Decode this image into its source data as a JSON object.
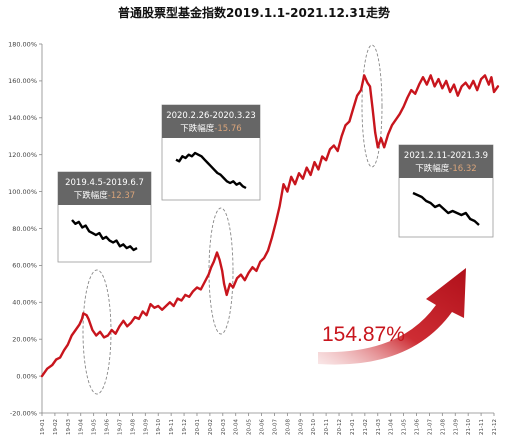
{
  "chart_data": {
    "type": "line",
    "title": "普通股票型基金指数2019.1.1-2021.12.31走势",
    "y_ticks": [
      "-20.00%",
      "0.00%",
      "20.00%",
      "40.00%",
      "60.00%",
      "80.00%",
      "100.00%",
      "120.00%",
      "140.00%",
      "160.00%",
      "180.00%"
    ],
    "ylim": [
      -20,
      180
    ],
    "x_ticks": [
      "19-01",
      "19-02",
      "19-03",
      "19-04",
      "19-05",
      "19-06",
      "19-07",
      "19-08",
      "19-09",
      "19-10",
      "19-11",
      "19-12",
      "20-01",
      "20-02",
      "20-03",
      "20-04",
      "20-05",
      "20-06",
      "20-07",
      "20-08",
      "20-09",
      "20-10",
      "20-11",
      "20-12",
      "21-01",
      "21-02",
      "21-03",
      "21-04",
      "21-05",
      "21-06",
      "21-07",
      "21-08",
      "21-09",
      "21-10",
      "21-11",
      "21-12"
    ],
    "series": [
      {
        "color": "#c8151d",
        "points": [
          [
            0,
            0
          ],
          [
            0.4,
            4
          ],
          [
            0.8,
            6
          ],
          [
            1.1,
            9
          ],
          [
            1.4,
            10
          ],
          [
            1.7,
            14
          ],
          [
            2.0,
            17
          ],
          [
            2.3,
            22
          ],
          [
            2.6,
            25
          ],
          [
            2.9,
            28
          ],
          [
            3.1,
            31
          ],
          [
            3.2,
            34
          ],
          [
            3.45,
            33
          ],
          [
            3.6,
            31
          ],
          [
            3.9,
            25
          ],
          [
            4.2,
            22
          ],
          [
            4.5,
            24
          ],
          [
            4.8,
            21
          ],
          [
            5.1,
            22
          ],
          [
            5.4,
            25
          ],
          [
            5.7,
            23
          ],
          [
            6.0,
            27
          ],
          [
            6.3,
            30
          ],
          [
            6.6,
            27
          ],
          [
            6.9,
            29
          ],
          [
            7.2,
            32
          ],
          [
            7.5,
            31
          ],
          [
            7.8,
            35
          ],
          [
            8.1,
            33
          ],
          [
            8.4,
            39
          ],
          [
            8.7,
            37
          ],
          [
            9.0,
            38
          ],
          [
            9.3,
            36
          ],
          [
            9.6,
            38
          ],
          [
            9.9,
            40
          ],
          [
            10.2,
            38
          ],
          [
            10.5,
            42
          ],
          [
            10.8,
            41
          ],
          [
            11.1,
            44
          ],
          [
            11.4,
            43
          ],
          [
            11.7,
            46
          ],
          [
            12.0,
            48
          ],
          [
            12.3,
            47
          ],
          [
            12.6,
            51
          ],
          [
            12.9,
            55
          ],
          [
            13.1,
            59
          ],
          [
            13.3,
            62
          ],
          [
            13.55,
            67
          ],
          [
            13.75,
            63
          ],
          [
            13.95,
            57
          ],
          [
            14.1,
            50
          ],
          [
            14.3,
            44
          ],
          [
            14.55,
            50
          ],
          [
            14.8,
            48
          ],
          [
            15.1,
            53
          ],
          [
            15.4,
            55
          ],
          [
            15.7,
            52
          ],
          [
            16.0,
            56
          ],
          [
            16.3,
            59
          ],
          [
            16.6,
            57
          ],
          [
            16.9,
            62
          ],
          [
            17.2,
            64
          ],
          [
            17.5,
            68
          ],
          [
            17.8,
            75
          ],
          [
            18.1,
            83
          ],
          [
            18.4,
            92
          ],
          [
            18.7,
            104
          ],
          [
            19.0,
            100
          ],
          [
            19.3,
            108
          ],
          [
            19.6,
            104
          ],
          [
            19.9,
            110
          ],
          [
            20.2,
            107
          ],
          [
            20.5,
            113
          ],
          [
            20.8,
            109
          ],
          [
            21.1,
            116
          ],
          [
            21.4,
            112
          ],
          [
            21.7,
            119
          ],
          [
            22.0,
            117
          ],
          [
            22.3,
            123
          ],
          [
            22.6,
            125
          ],
          [
            22.9,
            122
          ],
          [
            23.2,
            130
          ],
          [
            23.5,
            136
          ],
          [
            23.8,
            138
          ],
          [
            24.1,
            145
          ],
          [
            24.4,
            152
          ],
          [
            24.7,
            155
          ],
          [
            24.95,
            163
          ],
          [
            25.2,
            159
          ],
          [
            25.4,
            157
          ],
          [
            25.6,
            145
          ],
          [
            25.8,
            132
          ],
          [
            26.0,
            124
          ],
          [
            26.25,
            129
          ],
          [
            26.5,
            124
          ],
          [
            26.8,
            131
          ],
          [
            27.1,
            136
          ],
          [
            27.4,
            139
          ],
          [
            27.7,
            142
          ],
          [
            28.0,
            146
          ],
          [
            28.3,
            151
          ],
          [
            28.6,
            155
          ],
          [
            28.9,
            153
          ],
          [
            29.2,
            158
          ],
          [
            29.5,
            162
          ],
          [
            29.8,
            158
          ],
          [
            30.1,
            163
          ],
          [
            30.4,
            157
          ],
          [
            30.7,
            161
          ],
          [
            31.0,
            156
          ],
          [
            31.3,
            160
          ],
          [
            31.6,
            154
          ],
          [
            31.9,
            158
          ],
          [
            32.2,
            152
          ],
          [
            32.5,
            157
          ],
          [
            32.8,
            159
          ],
          [
            33.1,
            156
          ],
          [
            33.4,
            160
          ],
          [
            33.7,
            155
          ],
          [
            34.0,
            161
          ],
          [
            34.3,
            163
          ],
          [
            34.6,
            158
          ],
          [
            34.8,
            162
          ],
          [
            35.0,
            154
          ],
          [
            35.3,
            157
          ]
        ]
      }
    ],
    "annotations": [
      {
        "period": "2019.4.5-2019.6.7",
        "drop_label": "下跌幅度",
        "drop_value": "-12.37",
        "mini": [
          0,
          1,
          0.5,
          2,
          1.5,
          3,
          3.5,
          4,
          3.5,
          5,
          4.5,
          5.5,
          6,
          5.5,
          7,
          6.5,
          7.5,
          7,
          8,
          7.5
        ]
      },
      {
        "period": "2020.2.26-2020.3.23",
        "drop_label": "下跌幅度",
        "drop_value": "-15.76",
        "mini": [
          0,
          1,
          -2,
          -1,
          -3,
          -2,
          -4,
          -3,
          -2,
          0,
          2,
          4,
          6,
          8,
          9,
          11,
          13,
          14,
          13,
          15,
          14,
          16,
          17
        ]
      },
      {
        "period": "2021.2.11-2021.3.9",
        "drop_label": "下跌幅度",
        "drop_value": "-16.32",
        "mini": [
          0,
          1,
          2,
          4,
          5,
          7,
          6,
          8,
          10,
          9,
          10,
          11,
          10,
          13,
          14,
          16
        ]
      }
    ],
    "total_return": "154.87%",
    "grid": false
  }
}
